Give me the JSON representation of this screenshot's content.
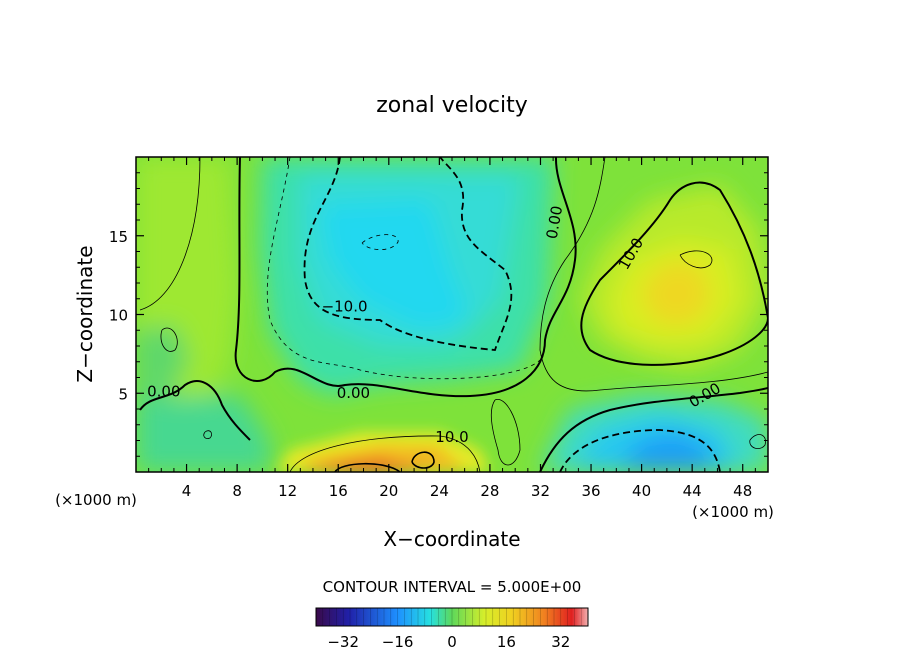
{
  "chart_data": {
    "type": "heatmap",
    "title": "zonal velocity",
    "xlabel": "X−coordinate",
    "ylabel": "Z−coordinate",
    "x_unit": "(×1000 m)",
    "xlim": [
      0,
      50
    ],
    "ylim": [
      0,
      20
    ],
    "x_ticks": [
      4,
      8,
      12,
      16,
      20,
      24,
      28,
      32,
      36,
      40,
      44,
      48
    ],
    "y_ticks": [
      5,
      10,
      15
    ],
    "contour_labels": [
      {
        "text": "−10.0",
        "x": 16.5,
        "y": 10.2
      },
      {
        "text": "0.00",
        "x": 33.5,
        "y": 15.8,
        "rotate": -80
      },
      {
        "text": "10.0",
        "x": 39.5,
        "y": 13.7,
        "rotate": -60
      },
      {
        "text": "0.00",
        "x": 2.2,
        "y": 4.8
      },
      {
        "text": "0.00",
        "x": 17.2,
        "y": 4.7
      },
      {
        "text": "10.0",
        "x": 25.0,
        "y": 1.9
      },
      {
        "text": "0.00",
        "x": 45.2,
        "y": 4.6,
        "rotate": -30
      }
    ],
    "features": [
      {
        "x": 19,
        "y": 13,
        "value": -12
      },
      {
        "x": 23.5,
        "y": 10.5,
        "value": -12
      },
      {
        "x": 42,
        "y": 11.5,
        "value": 14
      },
      {
        "x": 43,
        "y": 1.2,
        "value": -14
      },
      {
        "x": 18,
        "y": 0.6,
        "value": 22
      },
      {
        "x": 22,
        "y": 1.2,
        "value": 12
      }
    ],
    "contour_interval_text": "CONTOUR INTERVAL = 5.000E+00",
    "colorbar": {
      "ticks": [
        "−32",
        "−16",
        "0",
        "16",
        "32"
      ],
      "tick_values": [
        -32,
        -16,
        0,
        16,
        32
      ],
      "range": [
        -40,
        40
      ]
    },
    "grid": false
  }
}
